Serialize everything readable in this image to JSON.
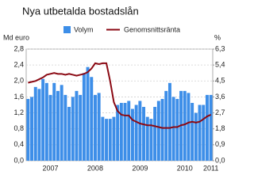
{
  "chart_data": {
    "type": "bar",
    "title": "Nya utbetalda bostadslån",
    "ylabel": "Md euro",
    "y2label": "%",
    "categories": [
      null,
      null,
      null,
      null,
      null,
      null,
      "2007",
      null,
      null,
      null,
      null,
      null,
      null,
      null,
      null,
      null,
      null,
      null,
      "2008",
      null,
      null,
      null,
      null,
      null,
      null,
      null,
      null,
      null,
      null,
      null,
      "2009",
      null,
      null,
      null,
      null,
      null,
      null,
      null,
      null,
      null,
      null,
      null,
      "2010",
      null,
      null,
      null,
      null,
      null,
      null,
      "2011"
    ],
    "series": [
      {
        "name": "Volym",
        "color": "#3d8ee8",
        "type": "bar",
        "values": [
          1.55,
          1.6,
          1.85,
          1.8,
          2.05,
          1.95,
          1.65,
          1.95,
          1.75,
          1.9,
          1.65,
          1.35,
          1.6,
          1.75,
          1.65,
          2.2,
          2.35,
          2.1,
          1.65,
          1.7,
          1.1,
          1.05,
          1.05,
          1.1,
          1.4,
          1.45,
          1.45,
          1.5,
          1.3,
          1.4,
          1.5,
          1.35,
          1.1,
          1.05,
          1.35,
          1.5,
          1.55,
          1.75,
          1.95,
          1.6,
          1.55,
          1.75,
          1.75,
          1.7,
          1.45,
          1.2,
          1.4,
          1.4,
          1.65,
          1.65
        ]
      },
      {
        "name": "Genomsnittsränta",
        "color": "#8b0a14",
        "type": "line",
        "axis": "y2",
        "values": [
          4.4,
          4.45,
          4.5,
          4.6,
          4.7,
          4.85,
          4.9,
          4.95,
          4.9,
          4.9,
          4.85,
          4.9,
          4.85,
          4.8,
          4.85,
          4.9,
          5.0,
          5.2,
          5.5,
          5.45,
          5.5,
          5.5,
          4.5,
          3.3,
          2.8,
          2.6,
          2.55,
          2.55,
          2.3,
          2.2,
          2.1,
          2.05,
          2.0,
          2.0,
          1.95,
          1.9,
          1.85,
          1.85,
          1.85,
          1.9,
          1.9,
          2.0,
          2.05,
          2.15,
          2.2,
          2.15,
          2.2,
          2.35,
          2.5,
          2.6
        ]
      }
    ],
    "ylim": [
      0,
      2.8
    ],
    "yticks": [
      {
        "value": 0,
        "label": "0,0"
      },
      {
        "value": 0.4,
        "label": "0,4"
      },
      {
        "value": 0.8,
        "label": "0,8"
      },
      {
        "value": 1.2,
        "label": "1,2"
      },
      {
        "value": 1.6,
        "label": "1,6"
      },
      {
        "value": 2.0,
        "label": "2,0"
      },
      {
        "value": 2.4,
        "label": "2,4"
      },
      {
        "value": 2.8,
        "label": "2,8"
      }
    ],
    "y2lim": [
      0,
      6.3
    ],
    "y2ticks": [
      {
        "value": 0,
        "label": "0,0"
      },
      {
        "value": 0.9,
        "label": "0,9"
      },
      {
        "value": 1.8,
        "label": "1,8"
      },
      {
        "value": 2.7,
        "label": "2,7"
      },
      {
        "value": 3.6,
        "label": "3,6"
      },
      {
        "value": 4.5,
        "label": "4,5"
      },
      {
        "value": 5.4,
        "label": "5,4"
      },
      {
        "value": 6.3,
        "label": "6,3"
      }
    ],
    "grid": true
  }
}
